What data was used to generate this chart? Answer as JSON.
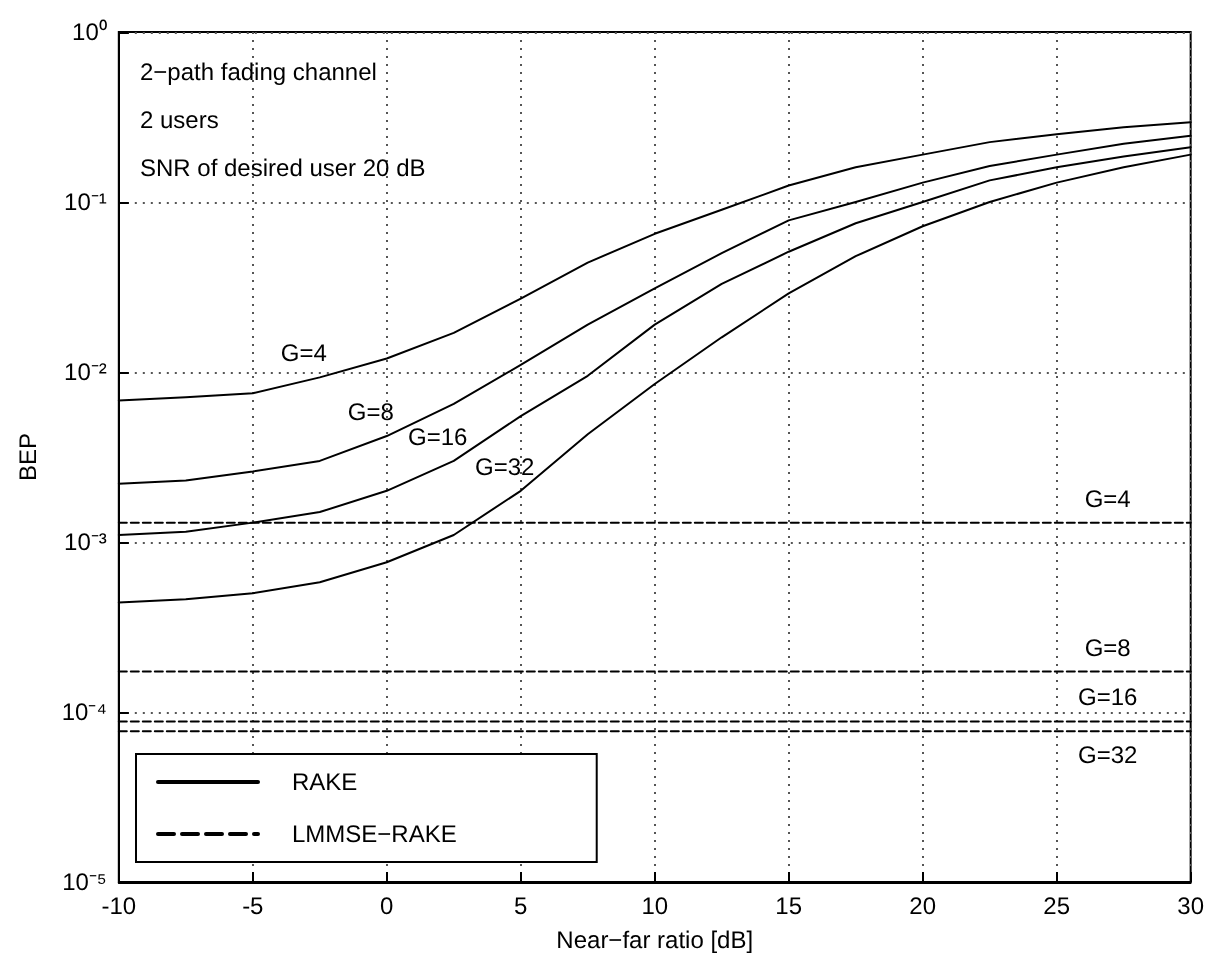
{
  "chart_data": {
    "type": "line",
    "xlabel": "Near−far ratio [dB]",
    "ylabel": "BEP",
    "x": [
      -10,
      -7.5,
      -5,
      -2.5,
      0,
      2.5,
      5,
      7.5,
      10,
      12.5,
      15,
      17.5,
      20,
      22.5,
      25,
      27.5,
      30
    ],
    "series": [
      {
        "name": "RAKE",
        "color": "#000000",
        "line_style": "solid",
        "values": [
          0.0068,
          0.0071,
          0.0075,
          0.0093,
          0.012,
          0.017,
          0.027,
          0.044,
          0.065,
          0.09,
          0.125,
          0.16,
          0.19,
          0.225,
          0.25,
          0.275,
          0.295
        ]
      },
      {
        "color": "#000000",
        "line_style": "solid",
        "values": [
          0.0022,
          0.0023,
          0.0026,
          0.003,
          0.0042,
          0.0065,
          0.011,
          0.019,
          0.031,
          0.05,
          0.078,
          0.1,
          0.13,
          0.163,
          0.19,
          0.22,
          0.245
        ]
      },
      {
        "color": "#000000",
        "line_style": "solid",
        "values": [
          0.0011,
          0.00115,
          0.0013,
          0.0015,
          0.002,
          0.003,
          0.0055,
          0.0095,
          0.019,
          0.033,
          0.051,
          0.075,
          0.1,
          0.134,
          0.16,
          0.185,
          0.21
        ]
      },
      {
        "color": "#000000",
        "line_style": "solid",
        "values": [
          0.00044,
          0.00046,
          0.0005,
          0.00058,
          0.00076,
          0.0011,
          0.002,
          0.0043,
          0.0085,
          0.016,
          0.029,
          0.048,
          0.072,
          0.1,
          0.13,
          0.16,
          0.19
        ]
      },
      {
        "name": "LMMSE−RAKE",
        "color": "#000000",
        "line_style": "dashed",
        "values": [
          0.0013,
          0.0013,
          0.0013,
          0.0013,
          0.0013,
          0.0013,
          0.0013,
          0.0013,
          0.0013,
          0.0013,
          0.0013,
          0.0013,
          0.0013,
          0.0013,
          0.0013,
          0.0013,
          0.0013
        ]
      },
      {
        "color": "#000000",
        "line_style": "dashed",
        "values": [
          0.000173,
          0.000173,
          0.000173,
          0.000173,
          0.000173,
          0.000173,
          0.000173,
          0.000173,
          0.000173,
          0.000173,
          0.000173,
          0.000173,
          0.000173,
          0.000173,
          0.000173,
          0.000173,
          0.000173
        ]
      },
      {
        "color": "#000000",
        "line_style": "dashed",
        "values": [
          8.8e-05,
          8.8e-05,
          8.8e-05,
          8.8e-05,
          8.8e-05,
          8.8e-05,
          8.8e-05,
          8.8e-05,
          8.8e-05,
          8.8e-05,
          8.8e-05,
          8.8e-05,
          8.8e-05,
          8.8e-05,
          8.8e-05,
          8.8e-05,
          8.8e-05
        ]
      },
      {
        "color": "#000000",
        "line_style": "dashed",
        "values": [
          7.7e-05,
          7.7e-05,
          7.7e-05,
          7.7e-05,
          7.7e-05,
          7.7e-05,
          7.7e-05,
          7.7e-05,
          7.7e-05,
          7.7e-05,
          7.7e-05,
          7.7e-05,
          7.7e-05,
          7.7e-05,
          7.7e-05,
          7.7e-05,
          7.7e-05
        ]
      }
    ],
    "xlim": [
      -10,
      30
    ],
    "xticks": [
      -10,
      -5,
      0,
      5,
      10,
      15,
      20,
      25,
      30
    ],
    "ylim": [
      1e-05,
      1
    ],
    "yticks": [
      {
        "value": 1e-05,
        "label": "10⁻⁵"
      },
      {
        "value": 0.0001,
        "label": "10⁻⁴"
      },
      {
        "value": 0.001,
        "label": "10⁻³"
      },
      {
        "value": 0.01,
        "label": "10⁻²"
      },
      {
        "value": 0.1,
        "label": "10⁻¹"
      },
      {
        "value": 1,
        "label": "10⁰"
      }
    ],
    "log": "y",
    "grid": true,
    "marker": "none",
    "legend": "bottom left",
    "annotations": [
      "2−path fading channel",
      "2 users",
      "SNR of desired user 20 dB",
      {
        "text": "G=4",
        "x": -2.5,
        "y": 0.0093
      },
      {
        "text": "G=8",
        "x": 0,
        "y": 0.0042
      },
      {
        "text": "G=16",
        "x": 2.5,
        "y": 0.003
      },
      {
        "text": "G=32",
        "x": 5,
        "y": 0.002
      },
      {
        "text": "G=4",
        "x": 27.5,
        "y": 0.0013
      },
      {
        "text": "G=8",
        "x": 27.5,
        "y": 0.000173
      },
      {
        "text": "G=16",
        "x": 27.5,
        "y": 8.8e-05
      },
      {
        "text": "G=32",
        "x": 27.5,
        "y": 7.7e-05
      }
    ]
  }
}
